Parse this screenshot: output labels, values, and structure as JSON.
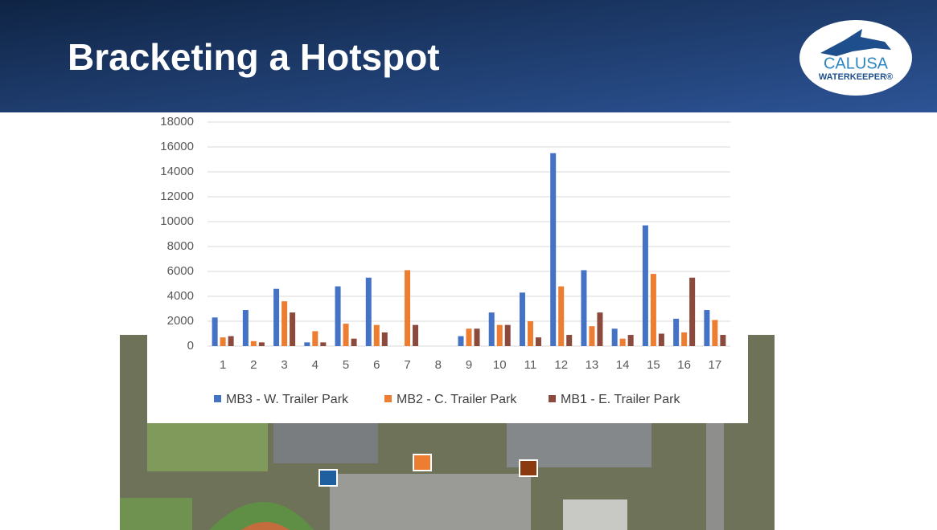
{
  "header": {
    "title": "Bracketing a Hotspot",
    "logo_text": "CALUSA",
    "logo_subtext": "WATERKEEPER®"
  },
  "chart_data": {
    "type": "bar",
    "categories": [
      "1",
      "2",
      "3",
      "4",
      "5",
      "6",
      "7",
      "8",
      "9",
      "10",
      "11",
      "12",
      "13",
      "14",
      "15",
      "16",
      "17"
    ],
    "series": [
      {
        "name": "MB3 - W. Trailer Park",
        "color": "#4472c4",
        "values": [
          2300,
          2900,
          4600,
          300,
          4800,
          5500,
          0,
          0,
          800,
          2700,
          4300,
          15500,
          6100,
          1400,
          9700,
          2200,
          2900
        ]
      },
      {
        "name": "MB2 - C. Trailer Park",
        "color": "#ed7d31",
        "values": [
          700,
          400,
          3600,
          1200,
          1800,
          1700,
          6100,
          0,
          1400,
          1700,
          2000,
          4800,
          1600,
          600,
          5800,
          1100,
          2100
        ]
      },
      {
        "name": "MB1 - E. Trailer Park",
        "color": "#8b4a3c",
        "values": [
          800,
          300,
          2700,
          300,
          600,
          1100,
          1700,
          0,
          1400,
          1700,
          700,
          900,
          2700,
          900,
          1000,
          5500,
          900
        ]
      }
    ],
    "ylim": [
      0,
      18000
    ],
    "yticks": [
      0,
      2000,
      4000,
      6000,
      8000,
      10000,
      12000,
      14000,
      16000,
      18000
    ],
    "grid": true,
    "legend": "bottom"
  }
}
